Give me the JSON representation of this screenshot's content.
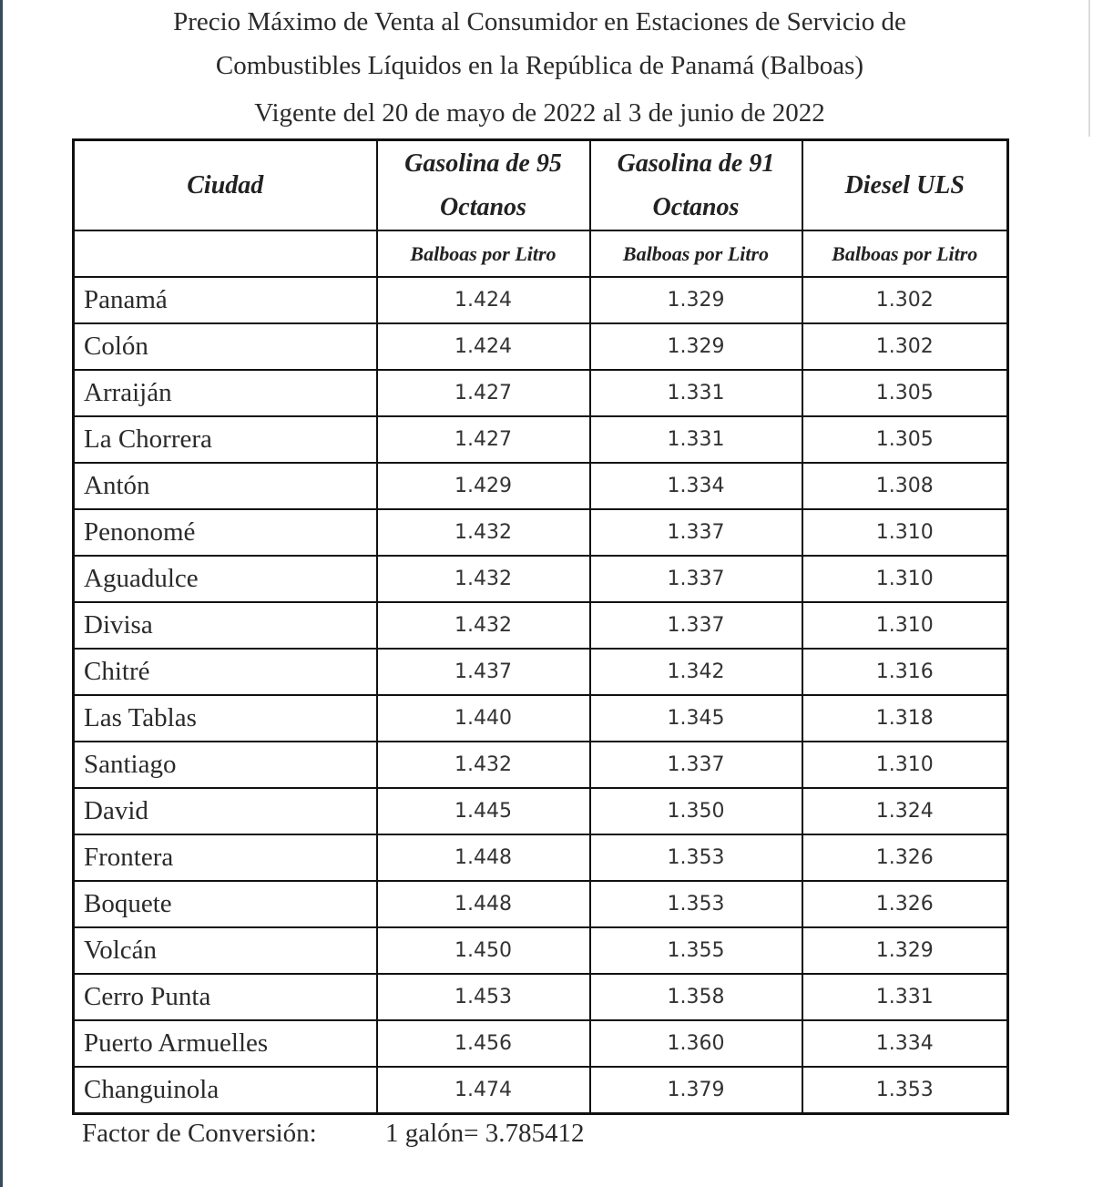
{
  "title": {
    "line1": "Precio Máximo de Venta al Consumidor en Estaciones de Servicio de",
    "line2": "Combustibles Líquidos en la República de Panamá (Balboas)",
    "line3": "Vigente del 20 de mayo de 2022 al 3 de junio de 2022"
  },
  "table": {
    "headers": [
      "Ciudad",
      "Gasolina de 95 Octanos",
      "Gasolina de 91 Octanos",
      "Diesel ULS"
    ],
    "units": [
      "",
      "Balboas por Litro",
      "Balboas por Litro",
      "Balboas por Litro"
    ],
    "rows": [
      [
        "Panamá",
        "1.424",
        "1.329",
        "1.302"
      ],
      [
        "Colón",
        "1.424",
        "1.329",
        "1.302"
      ],
      [
        "Arraiján",
        "1.427",
        "1.331",
        "1.305"
      ],
      [
        "La Chorrera",
        "1.427",
        "1.331",
        "1.305"
      ],
      [
        "Antón",
        "1.429",
        "1.334",
        "1.308"
      ],
      [
        "Penonomé",
        "1.432",
        "1.337",
        "1.310"
      ],
      [
        "Aguadulce",
        "1.432",
        "1.337",
        "1.310"
      ],
      [
        "Divisa",
        "1.432",
        "1.337",
        "1.310"
      ],
      [
        "Chitré",
        "1.437",
        "1.342",
        "1.316"
      ],
      [
        "Las Tablas",
        "1.440",
        "1.345",
        "1.318"
      ],
      [
        "Santiago",
        "1.432",
        "1.337",
        "1.310"
      ],
      [
        "David",
        "1.445",
        "1.350",
        "1.324"
      ],
      [
        "Frontera",
        "1.448",
        "1.353",
        "1.326"
      ],
      [
        "Boquete",
        "1.448",
        "1.353",
        "1.326"
      ],
      [
        "Volcán",
        "1.450",
        "1.355",
        "1.329"
      ],
      [
        "Cerro Punta",
        "1.453",
        "1.358",
        "1.331"
      ],
      [
        "Puerto Armuelles",
        "1.456",
        "1.360",
        "1.334"
      ],
      [
        "Changuinola",
        "1.474",
        "1.379",
        "1.353"
      ]
    ]
  },
  "footer": {
    "label": "Factor de Conversión:",
    "value": "1 galón= 3.785412"
  }
}
